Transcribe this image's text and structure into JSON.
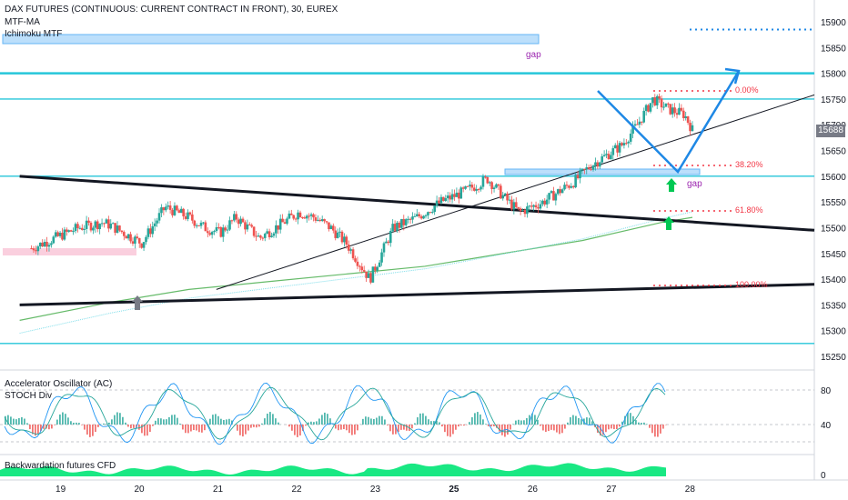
{
  "header": {
    "title": "DAX FUTURES (CONTINUOUS: CURRENT CONTRACT IN FRONT), 30, EUREX",
    "indicator_1": "MTF-MA",
    "indicator_2": "Ichimoku MTF"
  },
  "current_price": "15688",
  "pane_titles": {
    "accelerator": "Accelerator Oscillator (AC)",
    "stoch": "STOCH Div",
    "backwardation": "Backwardation futures CFD"
  },
  "annotations": {
    "gap_top": "gap",
    "gap_mid": "gap",
    "fib_0": "0.00%",
    "fib_382": "38.20%",
    "fib_618": "61.80%",
    "fib_100": "100.00%"
  },
  "colors": {
    "candle_up": "#26a69a",
    "candle_down": "#ef5350",
    "horizontal_lines": "#26c6da",
    "projection": "#1e88e5",
    "ma": "#66bb6a",
    "fib": "#f23645",
    "gap_zone": "#90caf9",
    "backwardation": "#00e676"
  },
  "chart_data": {
    "type": "line",
    "title": "DAX FUTURES (CONTINUOUS: CURRENT CONTRACT IN FRONT), 30, EUREX",
    "x_ticks": [
      "19",
      "20",
      "21",
      "22",
      "23",
      "25",
      "26",
      "27",
      "28"
    ],
    "y_ticks": [
      15250,
      15300,
      15350,
      15400,
      15450,
      15500,
      15550,
      15600,
      15650,
      15700,
      15750,
      15800,
      15850,
      15900
    ],
    "ylim": [
      15215,
      15920
    ],
    "price_path": {
      "x": [
        19.0,
        19.3,
        19.6,
        19.9,
        20.0,
        20.4,
        20.7,
        21.0,
        21.2,
        21.4,
        21.6,
        21.9,
        22.2,
        22.4,
        22.6,
        22.8,
        23.0,
        23.3,
        23.6,
        23.9,
        24.2,
        24.5,
        24.8,
        25.0,
        25.2,
        25.5,
        25.7,
        25.9,
        26.1,
        26.3,
        26.5,
        26.7,
        26.9,
        27.1,
        27.3,
        27.4
      ],
      "y": [
        15460,
        15480,
        15500,
        15510,
        15505,
        15470,
        15540,
        15520,
        15500,
        15490,
        15520,
        15480,
        15510,
        15530,
        15520,
        15500,
        15470,
        15400,
        15500,
        15520,
        15550,
        15570,
        15595,
        15560,
        15530,
        15550,
        15570,
        15590,
        15620,
        15640,
        15660,
        15700,
        15750,
        15730,
        15720,
        15690
      ]
    },
    "horizontal_levels": [
      15800,
      15750,
      15600,
      15275
    ],
    "dotted_levels": [
      15885
    ],
    "fib_levels": [
      {
        "label": "0.00%",
        "value": 15770
      },
      {
        "label": "38.20%",
        "value": 15620
      },
      {
        "label": "61.80%",
        "value": 15535
      },
      {
        "label": "100.00%",
        "value": 15390
      }
    ],
    "gap_zones": [
      {
        "label": "gap",
        "from": 15860,
        "to": 15875
      },
      {
        "label": "gap",
        "from": 15605,
        "to": 15615
      }
    ],
    "projection_path": {
      "x": [
        26.8,
        27.6,
        28.3
      ],
      "y": [
        15768,
        15610,
        15800
      ]
    },
    "trendlines": [
      {
        "x": [
          18.85,
          28.95
        ],
        "y": [
          15600,
          15495
        ]
      },
      {
        "x": [
          18.85,
          28.95
        ],
        "y": [
          15350,
          15390
        ]
      },
      {
        "x": [
          21.35,
          28.95
        ],
        "y": [
          15380,
          15758
        ]
      }
    ],
    "moving_average": {
      "x": [
        18.85,
        20.0,
        21.0,
        22.0,
        23.0,
        24.0,
        25.0,
        26.0,
        27.0,
        27.4
      ],
      "y": [
        15320,
        15355,
        15380,
        15395,
        15410,
        15425,
        15450,
        15475,
        15510,
        15520
      ]
    },
    "stoch_ticks": [
      80,
      40
    ],
    "backwardation_ticks": [
      0
    ]
  }
}
